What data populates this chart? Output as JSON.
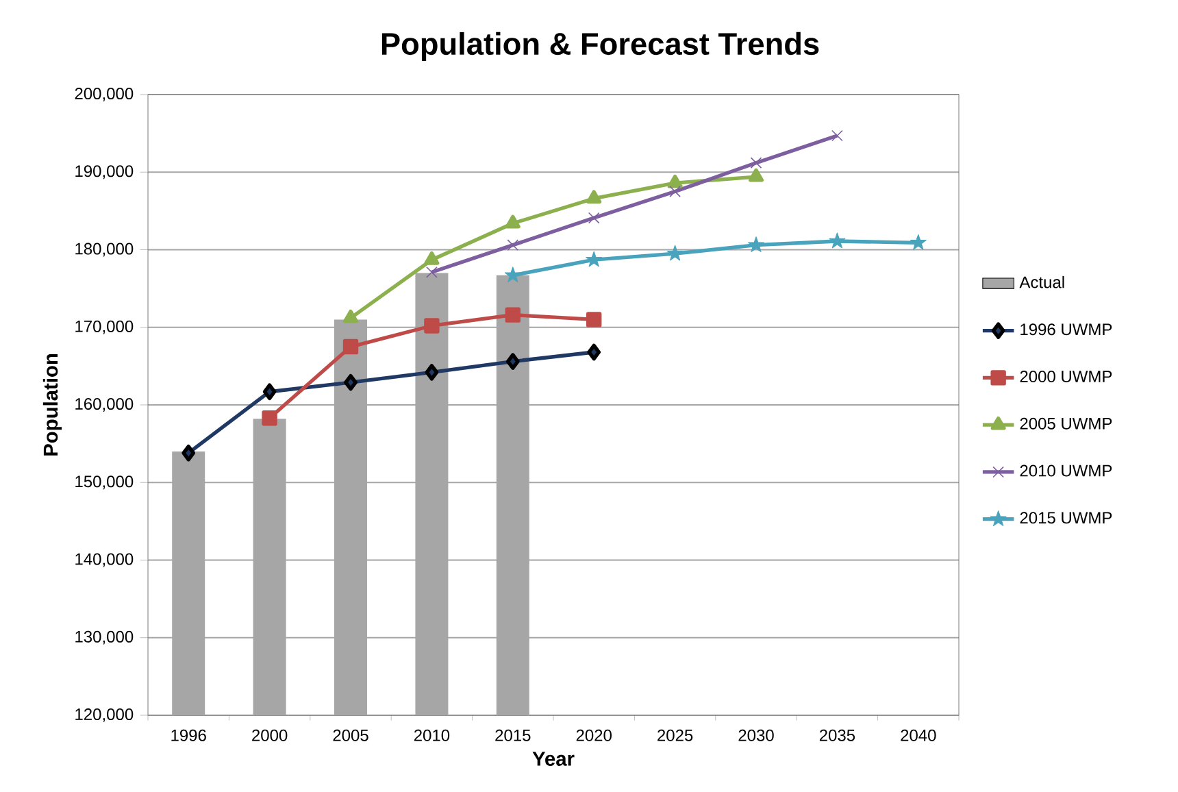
{
  "chart_data": {
    "type": "line",
    "title": "Population & Forecast Trends",
    "xlabel": "Year",
    "ylabel": "Population",
    "categories": [
      "1996",
      "2000",
      "2005",
      "2010",
      "2015",
      "2020",
      "2025",
      "2030",
      "2035",
      "2040"
    ],
    "series": [
      {
        "name": "Actual",
        "type": "bar",
        "color": "#a6a6a6",
        "values": [
          154000,
          158200,
          171000,
          177000,
          176700,
          null,
          null,
          null,
          null,
          null
        ]
      },
      {
        "name": "1996 UWMP",
        "color": "#1f3864",
        "marker": "diamond",
        "values": [
          153800,
          161700,
          162900,
          164200,
          165600,
          166800,
          null,
          null,
          null,
          null
        ]
      },
      {
        "name": "2000 UWMP",
        "color": "#be4b48",
        "marker": "square",
        "values": [
          null,
          158300,
          167500,
          170200,
          171600,
          171000,
          null,
          null,
          null,
          null
        ]
      },
      {
        "name": "2005 UWMP",
        "color": "#8db04e",
        "marker": "triangle",
        "values": [
          null,
          null,
          171200,
          178700,
          183400,
          186600,
          188600,
          189400,
          null,
          null
        ]
      },
      {
        "name": "2010 UWMP",
        "color": "#7d5fa0",
        "marker": "cross",
        "values": [
          null,
          null,
          null,
          177100,
          180600,
          184100,
          187500,
          191200,
          194700,
          null
        ]
      },
      {
        "name": "2015 UWMP",
        "color": "#4aa3bd",
        "marker": "star",
        "values": [
          null,
          null,
          null,
          null,
          176700,
          178700,
          179500,
          180600,
          181100,
          180900
        ]
      }
    ],
    "ylim": [
      120000,
      200000
    ],
    "yticks": [
      {
        "value": 120000,
        "label": "120,000"
      },
      {
        "value": 130000,
        "label": "130,000"
      },
      {
        "value": 140000,
        "label": "140,000"
      },
      {
        "value": 150000,
        "label": "150,000"
      },
      {
        "value": 160000,
        "label": "160,000"
      },
      {
        "value": 170000,
        "label": "170,000"
      },
      {
        "value": 180000,
        "label": "180,000"
      },
      {
        "value": 190000,
        "label": "190,000"
      },
      {
        "value": 200000,
        "label": "200,000"
      }
    ],
    "grid": "y",
    "legend": "right"
  }
}
